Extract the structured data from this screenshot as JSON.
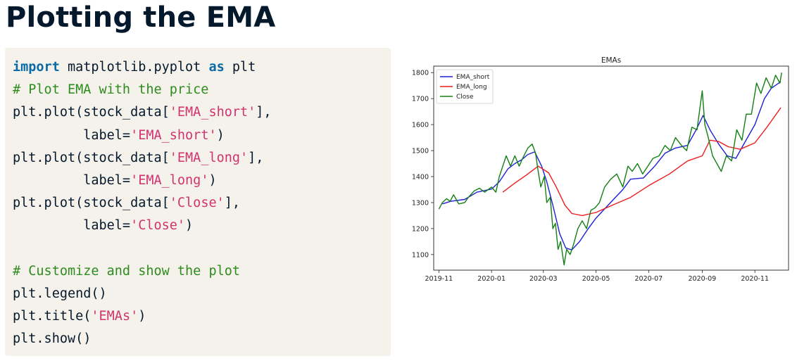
{
  "page": {
    "title": "Plotting the EMA"
  },
  "code": {
    "lines": [
      [
        {
          "t": "import",
          "c": "kw"
        },
        {
          "t": " matplotlib.pyplot ",
          "c": ""
        },
        {
          "t": "as",
          "c": "kw"
        },
        {
          "t": " plt",
          "c": ""
        }
      ],
      [
        {
          "t": "# Plot EMA with the price",
          "c": "cm"
        }
      ],
      [
        {
          "t": "plt.plot(stock_data[",
          "c": ""
        },
        {
          "t": "'EMA_short'",
          "c": "st"
        },
        {
          "t": "],",
          "c": ""
        }
      ],
      [
        {
          "t": "         label=",
          "c": ""
        },
        {
          "t": "'EMA_short'",
          "c": "st"
        },
        {
          "t": ")",
          "c": ""
        }
      ],
      [
        {
          "t": "plt.plot(stock_data[",
          "c": ""
        },
        {
          "t": "'EMA_long'",
          "c": "st"
        },
        {
          "t": "],",
          "c": ""
        }
      ],
      [
        {
          "t": "         label=",
          "c": ""
        },
        {
          "t": "'EMA_long'",
          "c": "st"
        },
        {
          "t": ")",
          "c": ""
        }
      ],
      [
        {
          "t": "plt.plot(stock_data[",
          "c": ""
        },
        {
          "t": "'Close'",
          "c": "st"
        },
        {
          "t": "],",
          "c": ""
        }
      ],
      [
        {
          "t": "         label=",
          "c": ""
        },
        {
          "t": "'Close'",
          "c": "st"
        },
        {
          "t": ")",
          "c": ""
        }
      ],
      [],
      [
        {
          "t": "# Customize and show the plot",
          "c": "cm"
        }
      ],
      [
        {
          "t": "plt.legend()",
          "c": ""
        }
      ],
      [
        {
          "t": "plt.title(",
          "c": ""
        },
        {
          "t": "'EMAs'",
          "c": "st"
        },
        {
          "t": ")",
          "c": ""
        }
      ],
      [
        {
          "t": "plt.show()",
          "c": ""
        }
      ]
    ]
  },
  "chart_data": {
    "type": "line",
    "title": "EMAs",
    "xlabel": "",
    "ylabel": "",
    "x_ticks": [
      "2019-11",
      "2020-01",
      "2020-03",
      "2020-05",
      "2020-07",
      "2020-09",
      "2020-11"
    ],
    "y_ticks": [
      1100,
      1200,
      1300,
      1400,
      1500,
      1600,
      1700,
      1800
    ],
    "xlim": [
      "2019-10-26",
      "2020-12-10"
    ],
    "ylim": [
      1040,
      1825
    ],
    "grid": false,
    "legend": "top-left",
    "series": [
      {
        "name": "EMA_short",
        "color": "#1f1fd8",
        "points": [
          [
            "2019-11-05",
            1295
          ],
          [
            "2019-11-15",
            1305
          ],
          [
            "2019-12-01",
            1312
          ],
          [
            "2019-12-15",
            1340
          ],
          [
            "2020-01-01",
            1352
          ],
          [
            "2020-01-10",
            1380
          ],
          [
            "2020-01-20",
            1430
          ],
          [
            "2020-01-28",
            1450
          ],
          [
            "2020-02-05",
            1465
          ],
          [
            "2020-02-12",
            1485
          ],
          [
            "2020-02-20",
            1495
          ],
          [
            "2020-02-28",
            1440
          ],
          [
            "2020-03-05",
            1380
          ],
          [
            "2020-03-12",
            1290
          ],
          [
            "2020-03-20",
            1180
          ],
          [
            "2020-03-27",
            1125
          ],
          [
            "2020-04-03",
            1118
          ],
          [
            "2020-04-12",
            1150
          ],
          [
            "2020-04-22",
            1200
          ],
          [
            "2020-05-01",
            1240
          ],
          [
            "2020-05-15",
            1290
          ],
          [
            "2020-06-01",
            1350
          ],
          [
            "2020-06-10",
            1390
          ],
          [
            "2020-06-25",
            1395
          ],
          [
            "2020-07-08",
            1440
          ],
          [
            "2020-07-20",
            1490
          ],
          [
            "2020-08-01",
            1510
          ],
          [
            "2020-08-15",
            1520
          ],
          [
            "2020-08-25",
            1580
          ],
          [
            "2020-09-02",
            1635
          ],
          [
            "2020-09-10",
            1580
          ],
          [
            "2020-09-20",
            1525
          ],
          [
            "2020-09-30",
            1480
          ],
          [
            "2020-10-10",
            1470
          ],
          [
            "2020-10-20",
            1530
          ],
          [
            "2020-11-01",
            1600
          ],
          [
            "2020-11-12",
            1700
          ],
          [
            "2020-11-20",
            1740
          ],
          [
            "2020-12-01",
            1765
          ]
        ]
      },
      {
        "name": "EMA_long",
        "color": "#ef1c1c",
        "points": [
          [
            "2020-01-14",
            1340
          ],
          [
            "2020-01-28",
            1375
          ],
          [
            "2020-02-10",
            1405
          ],
          [
            "2020-02-24",
            1440
          ],
          [
            "2020-03-07",
            1415
          ],
          [
            "2020-03-16",
            1360
          ],
          [
            "2020-03-26",
            1290
          ],
          [
            "2020-04-03",
            1258
          ],
          [
            "2020-04-15",
            1250
          ],
          [
            "2020-05-01",
            1262
          ],
          [
            "2020-05-20",
            1290
          ],
          [
            "2020-06-10",
            1320
          ],
          [
            "2020-07-01",
            1365
          ],
          [
            "2020-07-25",
            1410
          ],
          [
            "2020-08-15",
            1460
          ],
          [
            "2020-09-01",
            1480
          ],
          [
            "2020-09-10",
            1540
          ],
          [
            "2020-09-20",
            1535
          ],
          [
            "2020-10-01",
            1515
          ],
          [
            "2020-10-15",
            1505
          ],
          [
            "2020-11-01",
            1530
          ],
          [
            "2020-11-15",
            1590
          ],
          [
            "2020-12-01",
            1665
          ]
        ]
      },
      {
        "name": "Close",
        "color": "#138013",
        "points": [
          [
            "2019-11-01",
            1275
          ],
          [
            "2019-11-05",
            1300
          ],
          [
            "2019-11-10",
            1315
          ],
          [
            "2019-11-14",
            1305
          ],
          [
            "2019-11-18",
            1330
          ],
          [
            "2019-11-24",
            1295
          ],
          [
            "2019-12-01",
            1300
          ],
          [
            "2019-12-05",
            1320
          ],
          [
            "2019-12-12",
            1345
          ],
          [
            "2019-12-18",
            1355
          ],
          [
            "2019-12-24",
            1340
          ],
          [
            "2020-01-01",
            1360
          ],
          [
            "2020-01-06",
            1340
          ],
          [
            "2020-01-10",
            1400
          ],
          [
            "2020-01-14",
            1440
          ],
          [
            "2020-01-18",
            1480
          ],
          [
            "2020-01-23",
            1440
          ],
          [
            "2020-01-28",
            1480
          ],
          [
            "2020-02-02",
            1440
          ],
          [
            "2020-02-06",
            1470
          ],
          [
            "2020-02-12",
            1510
          ],
          [
            "2020-02-17",
            1525
          ],
          [
            "2020-02-21",
            1490
          ],
          [
            "2020-02-24",
            1420
          ],
          [
            "2020-02-27",
            1360
          ],
          [
            "2020-03-02",
            1400
          ],
          [
            "2020-03-05",
            1300
          ],
          [
            "2020-03-09",
            1320
          ],
          [
            "2020-03-12",
            1200
          ],
          [
            "2020-03-15",
            1220
          ],
          [
            "2020-03-18",
            1120
          ],
          [
            "2020-03-21",
            1150
          ],
          [
            "2020-03-25",
            1060
          ],
          [
            "2020-03-28",
            1120
          ],
          [
            "2020-04-01",
            1100
          ],
          [
            "2020-04-05",
            1140
          ],
          [
            "2020-04-10",
            1200
          ],
          [
            "2020-04-15",
            1230
          ],
          [
            "2020-04-20",
            1200
          ],
          [
            "2020-04-25",
            1270
          ],
          [
            "2020-04-30",
            1280
          ],
          [
            "2020-05-05",
            1300
          ],
          [
            "2020-05-11",
            1360
          ],
          [
            "2020-05-18",
            1390
          ],
          [
            "2020-05-25",
            1410
          ],
          [
            "2020-06-01",
            1360
          ],
          [
            "2020-06-07",
            1440
          ],
          [
            "2020-06-12",
            1420
          ],
          [
            "2020-06-18",
            1450
          ],
          [
            "2020-06-24",
            1410
          ],
          [
            "2020-06-30",
            1440
          ],
          [
            "2020-07-06",
            1470
          ],
          [
            "2020-07-13",
            1480
          ],
          [
            "2020-07-20",
            1520
          ],
          [
            "2020-07-26",
            1500
          ],
          [
            "2020-08-01",
            1550
          ],
          [
            "2020-08-08",
            1520
          ],
          [
            "2020-08-14",
            1500
          ],
          [
            "2020-08-20",
            1590
          ],
          [
            "2020-08-26",
            1580
          ],
          [
            "2020-09-01",
            1730
          ],
          [
            "2020-09-04",
            1600
          ],
          [
            "2020-09-08",
            1550
          ],
          [
            "2020-09-13",
            1480
          ],
          [
            "2020-09-18",
            1450
          ],
          [
            "2020-09-23",
            1420
          ],
          [
            "2020-09-29",
            1480
          ],
          [
            "2020-10-05",
            1460
          ],
          [
            "2020-10-11",
            1580
          ],
          [
            "2020-10-17",
            1540
          ],
          [
            "2020-10-22",
            1640
          ],
          [
            "2020-10-28",
            1640
          ],
          [
            "2020-11-03",
            1760
          ],
          [
            "2020-11-08",
            1720
          ],
          [
            "2020-11-14",
            1780
          ],
          [
            "2020-11-20",
            1740
          ],
          [
            "2020-11-25",
            1790
          ],
          [
            "2020-11-30",
            1760
          ],
          [
            "2020-12-02",
            1800
          ]
        ]
      }
    ]
  }
}
